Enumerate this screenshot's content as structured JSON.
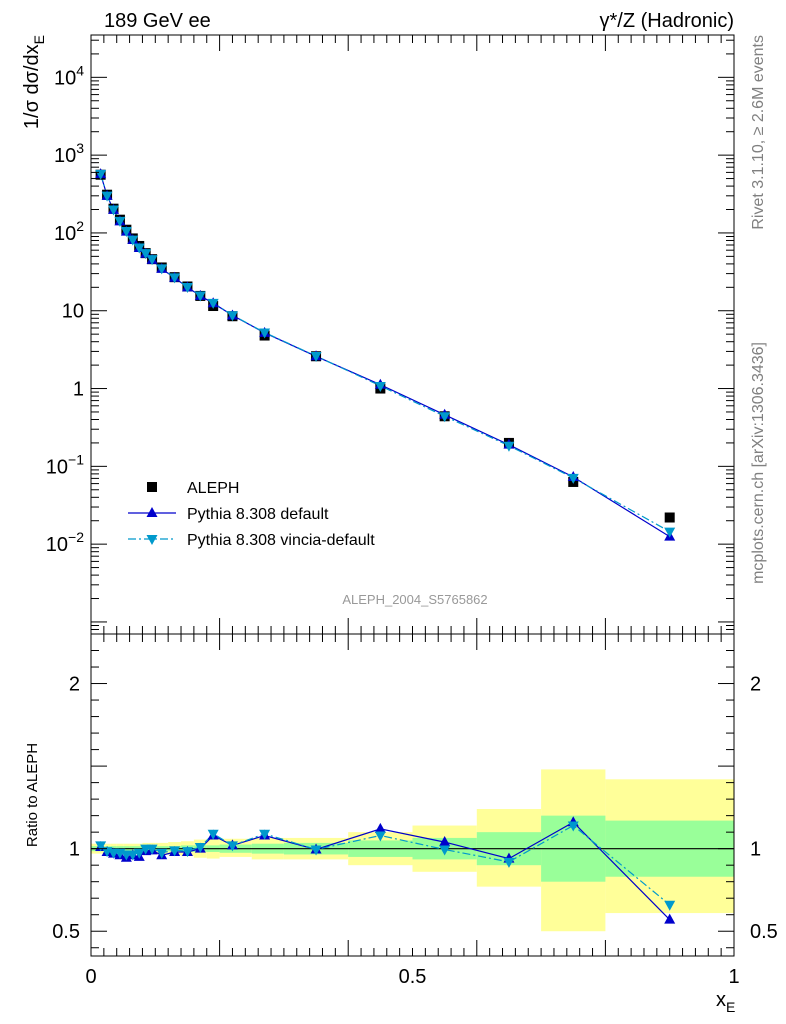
{
  "header": {
    "left": "189 GeV ee",
    "right": "γ*/Z (Hadronic)"
  },
  "side_labels": {
    "rivet": "Rivet 3.1.10, ≥ 2.6M events",
    "mcplots": "mcplots.cern.ch [arXiv:1306.3436]"
  },
  "watermark": "ALEPH_2004_S5765862",
  "chart_data": [
    {
      "type": "scatter",
      "ylabel": "1/σ dσ/dx_E",
      "yscale": "log",
      "xlim": [
        0,
        1
      ],
      "ylim": [
        0.0007,
        35000
      ],
      "yticks": [
        {
          "v": 0.01,
          "label": "10",
          "exp": "−2"
        },
        {
          "v": 0.1,
          "label": "10",
          "exp": "−1"
        },
        {
          "v": 1,
          "label": "1",
          "exp": ""
        },
        {
          "v": 10,
          "label": "10",
          "exp": ""
        },
        {
          "v": 100,
          "label": "10",
          "exp": "2"
        },
        {
          "v": 1000,
          "label": "10",
          "exp": "3"
        },
        {
          "v": 10000,
          "label": "10",
          "exp": "4"
        }
      ],
      "legend_position": "bottom-left",
      "series": [
        {
          "name": "ALEPH",
          "color": "#000000",
          "marker": "square",
          "points": [
            [
              0.015,
              560
            ],
            [
              0.025,
              310
            ],
            [
              0.035,
              205
            ],
            [
              0.045,
              148
            ],
            [
              0.055,
              110
            ],
            [
              0.065,
              85
            ],
            [
              0.075,
              68
            ],
            [
              0.085,
              55
            ],
            [
              0.095,
              46
            ],
            [
              0.11,
              36
            ],
            [
              0.13,
              27
            ],
            [
              0.15,
              20.5
            ],
            [
              0.17,
              15.5
            ],
            [
              0.19,
              11.5
            ],
            [
              0.22,
              8.5
            ],
            [
              0.27,
              4.8
            ],
            [
              0.35,
              2.6
            ],
            [
              0.45,
              1.0
            ],
            [
              0.55,
              0.44
            ],
            [
              0.65,
              0.2
            ],
            [
              0.75,
              0.063
            ],
            [
              0.9,
              0.022
            ]
          ]
        },
        {
          "name": "Pythia 8.308 default",
          "color": "#0000cc",
          "marker": "triangle-up",
          "dash": "",
          "points": [
            [
              0.015,
              570
            ],
            [
              0.025,
              300
            ],
            [
              0.035,
              198
            ],
            [
              0.045,
              141
            ],
            [
              0.055,
              104
            ],
            [
              0.065,
              81
            ],
            [
              0.075,
              64
            ],
            [
              0.085,
              54
            ],
            [
              0.095,
              45
            ],
            [
              0.11,
              34.5
            ],
            [
              0.13,
              26.5
            ],
            [
              0.15,
              20
            ],
            [
              0.17,
              15.5
            ],
            [
              0.19,
              12.5
            ],
            [
              0.22,
              8.7
            ],
            [
              0.27,
              5.2
            ],
            [
              0.35,
              2.6
            ],
            [
              0.45,
              1.12
            ],
            [
              0.55,
              0.46
            ],
            [
              0.65,
              0.19
            ],
            [
              0.75,
              0.073
            ],
            [
              0.9,
              0.0125
            ]
          ]
        },
        {
          "name": "Pythia 8.308 vincia-default",
          "color": "#0099cc",
          "marker": "triangle-down",
          "dash": "8,3,2,3",
          "points": [
            [
              0.015,
              575
            ],
            [
              0.025,
              302
            ],
            [
              0.035,
              200
            ],
            [
              0.045,
              143
            ],
            [
              0.055,
              106
            ],
            [
              0.065,
              82
            ],
            [
              0.075,
              65
            ],
            [
              0.085,
              55
            ],
            [
              0.095,
              46
            ],
            [
              0.11,
              35
            ],
            [
              0.13,
              26.8
            ],
            [
              0.15,
              20.2
            ],
            [
              0.17,
              15.7
            ],
            [
              0.19,
              12.6
            ],
            [
              0.22,
              8.75
            ],
            [
              0.27,
              5.25
            ],
            [
              0.35,
              2.62
            ],
            [
              0.45,
              1.08
            ],
            [
              0.55,
              0.44
            ],
            [
              0.65,
              0.184
            ],
            [
              0.75,
              0.071
            ],
            [
              0.9,
              0.0145
            ]
          ]
        }
      ]
    },
    {
      "type": "line",
      "ylabel": "Ratio to ALEPH",
      "xlabel": "x_E",
      "xlim": [
        0,
        1
      ],
      "ylim": [
        0.35,
        2.3
      ],
      "yticks": [
        {
          "v": 0.5,
          "label": "0.5"
        },
        {
          "v": 1,
          "label": "1"
        },
        {
          "v": 2,
          "label": "2"
        }
      ],
      "xticks": [
        {
          "v": 0,
          "label": "0"
        },
        {
          "v": 0.5,
          "label": "0.5"
        },
        {
          "v": 1,
          "label": "1"
        }
      ],
      "reference_line": 1,
      "uncertainty_bands": [
        {
          "x0": 0.0,
          "x1": 0.02,
          "stat_lo": 0.985,
          "stat_hi": 1.015,
          "tot_lo": 0.97,
          "tot_hi": 1.03
        },
        {
          "x0": 0.02,
          "x1": 0.03,
          "stat_lo": 0.985,
          "stat_hi": 1.015,
          "tot_lo": 0.97,
          "tot_hi": 1.03
        },
        {
          "x0": 0.03,
          "x1": 0.04,
          "stat_lo": 0.985,
          "stat_hi": 1.015,
          "tot_lo": 0.97,
          "tot_hi": 1.03
        },
        {
          "x0": 0.04,
          "x1": 0.05,
          "stat_lo": 0.985,
          "stat_hi": 1.015,
          "tot_lo": 0.97,
          "tot_hi": 1.03
        },
        {
          "x0": 0.05,
          "x1": 0.06,
          "stat_lo": 0.985,
          "stat_hi": 1.015,
          "tot_lo": 0.97,
          "tot_hi": 1.03
        },
        {
          "x0": 0.06,
          "x1": 0.07,
          "stat_lo": 0.985,
          "stat_hi": 1.015,
          "tot_lo": 0.97,
          "tot_hi": 1.03
        },
        {
          "x0": 0.07,
          "x1": 0.08,
          "stat_lo": 0.985,
          "stat_hi": 1.015,
          "tot_lo": 0.97,
          "tot_hi": 1.03
        },
        {
          "x0": 0.08,
          "x1": 0.09,
          "stat_lo": 0.985,
          "stat_hi": 1.015,
          "tot_lo": 0.965,
          "tot_hi": 1.035
        },
        {
          "x0": 0.09,
          "x1": 0.1,
          "stat_lo": 0.985,
          "stat_hi": 1.015,
          "tot_lo": 0.965,
          "tot_hi": 1.035
        },
        {
          "x0": 0.1,
          "x1": 0.12,
          "stat_lo": 0.985,
          "stat_hi": 1.015,
          "tot_lo": 0.965,
          "tot_hi": 1.035
        },
        {
          "x0": 0.12,
          "x1": 0.14,
          "stat_lo": 0.985,
          "stat_hi": 1.015,
          "tot_lo": 0.96,
          "tot_hi": 1.04
        },
        {
          "x0": 0.14,
          "x1": 0.16,
          "stat_lo": 0.98,
          "stat_hi": 1.02,
          "tot_lo": 0.955,
          "tot_hi": 1.045
        },
        {
          "x0": 0.16,
          "x1": 0.18,
          "stat_lo": 0.98,
          "stat_hi": 1.02,
          "tot_lo": 0.945,
          "tot_hi": 1.055
        },
        {
          "x0": 0.18,
          "x1": 0.2,
          "stat_lo": 0.98,
          "stat_hi": 1.02,
          "tot_lo": 0.94,
          "tot_hi": 1.06
        },
        {
          "x0": 0.2,
          "x1": 0.25,
          "stat_lo": 0.975,
          "stat_hi": 1.025,
          "tot_lo": 0.95,
          "tot_hi": 1.06
        },
        {
          "x0": 0.25,
          "x1": 0.3,
          "stat_lo": 0.97,
          "stat_hi": 1.03,
          "tot_lo": 0.935,
          "tot_hi": 1.065
        },
        {
          "x0": 0.3,
          "x1": 0.4,
          "stat_lo": 0.965,
          "stat_hi": 1.035,
          "tot_lo": 0.935,
          "tot_hi": 1.065
        },
        {
          "x0": 0.4,
          "x1": 0.5,
          "stat_lo": 0.95,
          "stat_hi": 1.05,
          "tot_lo": 0.9,
          "tot_hi": 1.1
        },
        {
          "x0": 0.5,
          "x1": 0.6,
          "stat_lo": 0.935,
          "stat_hi": 1.065,
          "tot_lo": 0.86,
          "tot_hi": 1.14
        },
        {
          "x0": 0.6,
          "x1": 0.7,
          "stat_lo": 0.9,
          "stat_hi": 1.1,
          "tot_lo": 0.77,
          "tot_hi": 1.24
        },
        {
          "x0": 0.7,
          "x1": 0.8,
          "stat_lo": 0.8,
          "stat_hi": 1.2,
          "tot_lo": 0.5,
          "tot_hi": 1.48
        },
        {
          "x0": 0.8,
          "x1": 1.0,
          "stat_lo": 0.83,
          "stat_hi": 1.17,
          "tot_lo": 0.61,
          "tot_hi": 1.42
        }
      ],
      "band_colors": {
        "stat": "#99ff99",
        "total": "#ffff99"
      },
      "series": [
        {
          "name": "Pythia 8.308 default",
          "color": "#0000cc",
          "marker": "triangle-up",
          "dash": "",
          "points": [
            [
              0.015,
              1.01
            ],
            [
              0.025,
              0.98
            ],
            [
              0.035,
              0.97
            ],
            [
              0.045,
              0.96
            ],
            [
              0.055,
              0.945
            ],
            [
              0.065,
              0.96
            ],
            [
              0.075,
              0.95
            ],
            [
              0.085,
              0.985
            ],
            [
              0.095,
              0.99
            ],
            [
              0.11,
              0.96
            ],
            [
              0.13,
              0.98
            ],
            [
              0.15,
              0.98
            ],
            [
              0.17,
              1.0
            ],
            [
              0.19,
              1.08
            ],
            [
              0.22,
              1.02
            ],
            [
              0.27,
              1.08
            ],
            [
              0.35,
              0.995
            ],
            [
              0.45,
              1.12
            ],
            [
              0.55,
              1.04
            ],
            [
              0.65,
              0.94
            ],
            [
              0.75,
              1.16
            ],
            [
              0.9,
              0.57
            ]
          ]
        },
        {
          "name": "Pythia 8.308 vincia-default",
          "color": "#0099cc",
          "marker": "triangle-down",
          "dash": "8,3,2,3",
          "points": [
            [
              0.015,
              1.02
            ],
            [
              0.025,
              0.985
            ],
            [
              0.035,
              0.975
            ],
            [
              0.045,
              0.975
            ],
            [
              0.055,
              0.965
            ],
            [
              0.065,
              0.965
            ],
            [
              0.075,
              0.975
            ],
            [
              0.085,
              1.0
            ],
            [
              0.095,
              1.0
            ],
            [
              0.11,
              0.975
            ],
            [
              0.13,
              0.99
            ],
            [
              0.15,
              0.985
            ],
            [
              0.17,
              1.01
            ],
            [
              0.19,
              1.09
            ],
            [
              0.22,
              1.02
            ],
            [
              0.27,
              1.09
            ],
            [
              0.35,
              0.995
            ],
            [
              0.45,
              1.08
            ],
            [
              0.55,
              0.995
            ],
            [
              0.65,
              0.92
            ],
            [
              0.75,
              1.14
            ],
            [
              0.9,
              0.66
            ]
          ]
        }
      ]
    }
  ]
}
